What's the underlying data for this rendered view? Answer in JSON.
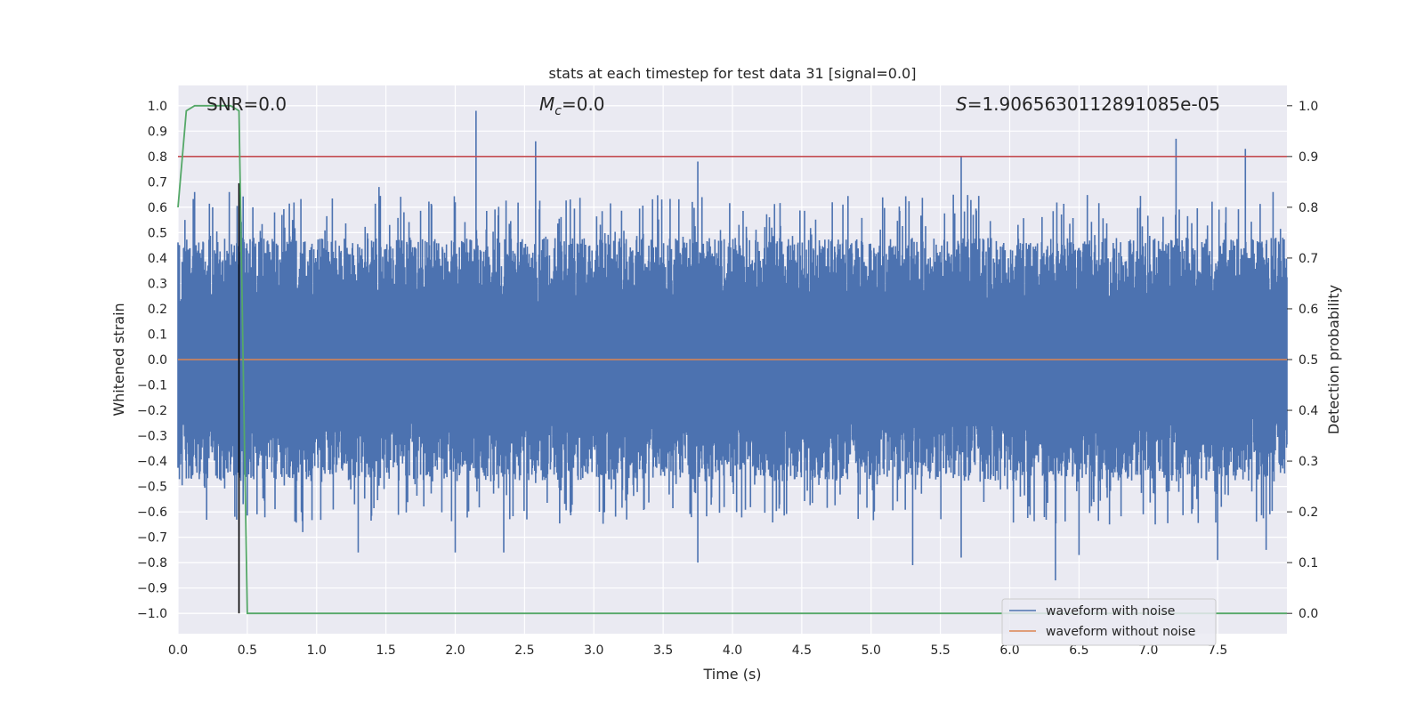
{
  "chart_data": {
    "type": "line",
    "title": "stats at each timestep for test data 31 [signal=0.0]",
    "xlabel": "Time (s)",
    "ylabel_left": "Whitened strain",
    "ylabel_right": "Detection probability",
    "xlim": [
      0.0,
      8.0
    ],
    "ylim_left": [
      -1.08,
      1.08
    ],
    "ylim_right": [
      -0.04,
      1.04
    ],
    "x_ticks": [
      "0.0",
      "0.5",
      "1.0",
      "1.5",
      "2.0",
      "2.5",
      "3.0",
      "3.5",
      "4.0",
      "4.5",
      "5.0",
      "5.5",
      "6.0",
      "6.5",
      "7.0",
      "7.5"
    ],
    "y_left_ticks": [
      "1.0",
      "0.9",
      "0.8",
      "0.7",
      "0.6",
      "0.5",
      "0.4",
      "0.3",
      "0.2",
      "0.1",
      "0.0",
      "−0.1",
      "−0.2",
      "−0.3",
      "−0.4",
      "−0.5",
      "−0.6",
      "−0.7",
      "−0.8",
      "−0.9",
      "−1.0"
    ],
    "y_right_ticks": [
      "0.0",
      "0.1",
      "0.2",
      "0.3",
      "0.4",
      "0.5",
      "0.6",
      "0.7",
      "0.8",
      "0.9",
      "1.0"
    ],
    "grid": true,
    "annotations": {
      "snr": "SNR=0.0",
      "mc_symbol": "M",
      "mc_sub": "c",
      "mc_value": "=0.0",
      "s_symbol": "S",
      "s_value": "=1.9065630112891085e-05"
    },
    "legend": {
      "location": "lower-right",
      "entries": [
        {
          "label": "waveform with noise",
          "color": "#4c72b0"
        },
        {
          "label": "waveform without noise",
          "color": "#dd8452"
        }
      ]
    },
    "series": [
      {
        "name": "waveform with noise",
        "axis": "left",
        "color": "#4c72b0",
        "x_range": [
          0.0,
          8.0
        ],
        "noise_envelope": {
          "typical_max": 0.45,
          "typical_min": -0.45,
          "peak_max": 0.98,
          "peak_min": -0.87
        },
        "spikes": [
          {
            "x": 0.05,
            "y": 0.55
          },
          {
            "x": 0.12,
            "y": 0.66
          },
          {
            "x": 0.25,
            "y": 0.6
          },
          {
            "x": 0.37,
            "y": 0.66
          },
          {
            "x": 0.45,
            "y": 0.65
          },
          {
            "x": 0.54,
            "y": 0.6
          },
          {
            "x": 0.75,
            "y": 0.57
          },
          {
            "x": 1.45,
            "y": 0.68
          },
          {
            "x": 2.0,
            "y": 0.62
          },
          {
            "x": 2.15,
            "y": 0.98
          },
          {
            "x": 2.58,
            "y": 0.86
          },
          {
            "x": 3.75,
            "y": 0.78
          },
          {
            "x": 5.65,
            "y": 0.8
          },
          {
            "x": 7.2,
            "y": 0.87
          },
          {
            "x": 7.7,
            "y": 0.83
          },
          {
            "x": 7.9,
            "y": 0.66
          },
          {
            "x": 0.47,
            "y": -0.57
          },
          {
            "x": 0.9,
            "y": -0.68
          },
          {
            "x": 1.3,
            "y": -0.76
          },
          {
            "x": 2.0,
            "y": -0.76
          },
          {
            "x": 2.35,
            "y": -0.76
          },
          {
            "x": 3.75,
            "y": -0.8
          },
          {
            "x": 5.3,
            "y": -0.81
          },
          {
            "x": 5.65,
            "y": -0.78
          },
          {
            "x": 6.33,
            "y": -0.87
          },
          {
            "x": 6.5,
            "y": -0.77
          },
          {
            "x": 7.5,
            "y": -0.79
          },
          {
            "x": 7.85,
            "y": -0.75
          }
        ]
      },
      {
        "name": "waveform without noise",
        "axis": "left",
        "color": "#dd8452",
        "x": [
          0.0,
          8.0
        ],
        "y": [
          0.0,
          0.0
        ]
      },
      {
        "name": "detection probability",
        "axis": "right",
        "color": "#55a868",
        "x": [
          0.0,
          0.06,
          0.12,
          0.2,
          0.3,
          0.38,
          0.44,
          0.5,
          8.0
        ],
        "y": [
          0.8,
          0.99,
          1.0,
          1.0,
          1.0,
          1.0,
          0.99,
          0.0,
          0.0
        ]
      }
    ],
    "threshold_line": {
      "axis": "right",
      "value": 0.9,
      "color": "#c44e52"
    },
    "vertical_marker": {
      "x": 0.44,
      "color": "#000000"
    }
  }
}
